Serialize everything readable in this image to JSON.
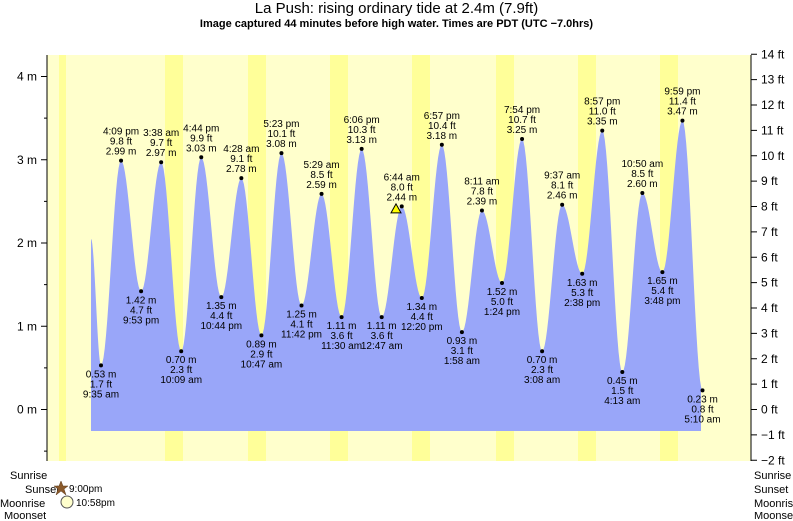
{
  "title": "La Push: rising  ordinary tide at 2.4m (7.9ft)",
  "subtitle": "Image captured 44 minutes before high water. Times are PDT (UTC −7.0hrs)",
  "colors": {
    "background": "#ffffcc",
    "tide_fill": "#99a6f9",
    "night_stripe": "#ffff99"
  },
  "legend": {
    "left": [
      "Sunrise",
      "Sunset",
      "Moonrise",
      "Moonset"
    ],
    "right": [
      "Sunrise",
      "Sunset",
      "Moonrise",
      "Moonset"
    ],
    "sunset_time": "9:00pm",
    "moonrise_time": "10:58pm",
    "sunset_icon": "star-icon",
    "moonrise_icon": "moon-icon"
  },
  "chart_data": {
    "type": "area",
    "title": "La Push: rising  ordinary tide at 2.4m (7.9ft)",
    "y_left_unit": "m",
    "y_left_ticks": [
      0,
      1,
      2,
      3,
      4
    ],
    "y_right_unit": "ft",
    "y_right_ticks": [
      -2,
      -1,
      0,
      1,
      2,
      3,
      4,
      5,
      6,
      7,
      8,
      9,
      10,
      11,
      12,
      13,
      14
    ],
    "ylim_m": [
      -0.61,
      4.27
    ],
    "grid": false,
    "current": {
      "m": 2.41,
      "ft": "7.9"
    },
    "start_m": 2.05,
    "end_m": 0.23,
    "extremes": [
      {
        "type": "low",
        "m": 0.53,
        "text": [
          "0.53 m",
          "1.7 ft",
          "9:35 am"
        ]
      },
      {
        "type": "high",
        "m": 2.99,
        "text": [
          "4:09 pm",
          "9.8 ft",
          "2.99 m"
        ]
      },
      {
        "type": "low",
        "m": 1.42,
        "text": [
          "1.42 m",
          "4.7 ft",
          "9:53 pm"
        ]
      },
      {
        "type": "high",
        "m": 2.97,
        "text": [
          "3:38 am",
          "9.7 ft",
          "2.97 m"
        ]
      },
      {
        "type": "low",
        "m": 0.7,
        "text": [
          "0.70 m",
          "2.3 ft",
          "10:09 am"
        ]
      },
      {
        "type": "high",
        "m": 3.03,
        "text": [
          "4:44 pm",
          "9.9 ft",
          "3.03 m"
        ]
      },
      {
        "type": "low",
        "m": 1.35,
        "text": [
          "1.35 m",
          "4.4 ft",
          "10:44 pm"
        ]
      },
      {
        "type": "high",
        "m": 2.78,
        "text": [
          "4:28 am",
          "9.1 ft",
          "2.78 m"
        ]
      },
      {
        "type": "low",
        "m": 0.89,
        "text": [
          "0.89 m",
          "2.9 ft",
          "10:47 am"
        ]
      },
      {
        "type": "high",
        "m": 3.08,
        "text": [
          "5:23 pm",
          "10.1 ft",
          "3.08 m"
        ]
      },
      {
        "type": "low",
        "m": 1.25,
        "text": [
          "1.25 m",
          "4.1 ft",
          "11:42 pm"
        ]
      },
      {
        "type": "high",
        "m": 2.59,
        "text": [
          "5:29 am",
          "8.5 ft",
          "2.59 m"
        ]
      },
      {
        "type": "low",
        "m": 1.11,
        "text": [
          "1.11 m",
          "3.6 ft",
          "11:30 am"
        ]
      },
      {
        "type": "high",
        "m": 3.13,
        "text": [
          "6:06 pm",
          "10.3 ft",
          "3.13 m"
        ]
      },
      {
        "type": "low",
        "m": 1.11,
        "text": [
          "1.11 m",
          "3.6 ft",
          "12:47 am"
        ]
      },
      {
        "type": "high",
        "m": 2.44,
        "text": [
          "6:44 am",
          "8.0 ft",
          "2.44 m"
        ]
      },
      {
        "type": "low",
        "m": 1.34,
        "text": [
          "1.34 m",
          "4.4 ft",
          "12:20 pm"
        ]
      },
      {
        "type": "high",
        "m": 3.18,
        "text": [
          "6:57 pm",
          "10.4 ft",
          "3.18 m"
        ]
      },
      {
        "type": "low",
        "m": 0.93,
        "text": [
          "0.93 m",
          "3.1 ft",
          "1:58 am"
        ]
      },
      {
        "type": "high",
        "m": 2.39,
        "text": [
          "8:11 am",
          "7.8 ft",
          "2.39 m"
        ]
      },
      {
        "type": "low",
        "m": 1.52,
        "text": [
          "1.52 m",
          "5.0 ft",
          "1:24 pm"
        ]
      },
      {
        "type": "high",
        "m": 3.25,
        "text": [
          "7:54 pm",
          "10.7 ft",
          "3.25 m"
        ]
      },
      {
        "type": "low",
        "m": 0.7,
        "text": [
          "0.70 m",
          "2.3 ft",
          "3:08 am"
        ]
      },
      {
        "type": "high",
        "m": 2.46,
        "text": [
          "9:37 am",
          "8.1 ft",
          "2.46 m"
        ]
      },
      {
        "type": "low",
        "m": 1.63,
        "text": [
          "1.63 m",
          "5.3 ft",
          "2:38 pm"
        ]
      },
      {
        "type": "high",
        "m": 3.35,
        "text": [
          "8:57 pm",
          "11.0 ft",
          "3.35 m"
        ]
      },
      {
        "type": "low",
        "m": 0.45,
        "text": [
          "0.45 m",
          "1.5 ft",
          "4:13 am"
        ]
      },
      {
        "type": "high",
        "m": 2.6,
        "text": [
          "10:50 am",
          "8.5 ft",
          "2.60 m"
        ]
      },
      {
        "type": "low",
        "m": 1.65,
        "text": [
          "1.65 m",
          "5.4 ft",
          "3:48 pm"
        ]
      },
      {
        "type": "high",
        "m": 3.47,
        "text": [
          "9:59 pm",
          "11.4 ft",
          "3.47 m"
        ]
      },
      {
        "type": "low",
        "m": 0.23,
        "text": [
          "0.23 m",
          "0.8 ft",
          "5:10 am"
        ]
      }
    ]
  }
}
